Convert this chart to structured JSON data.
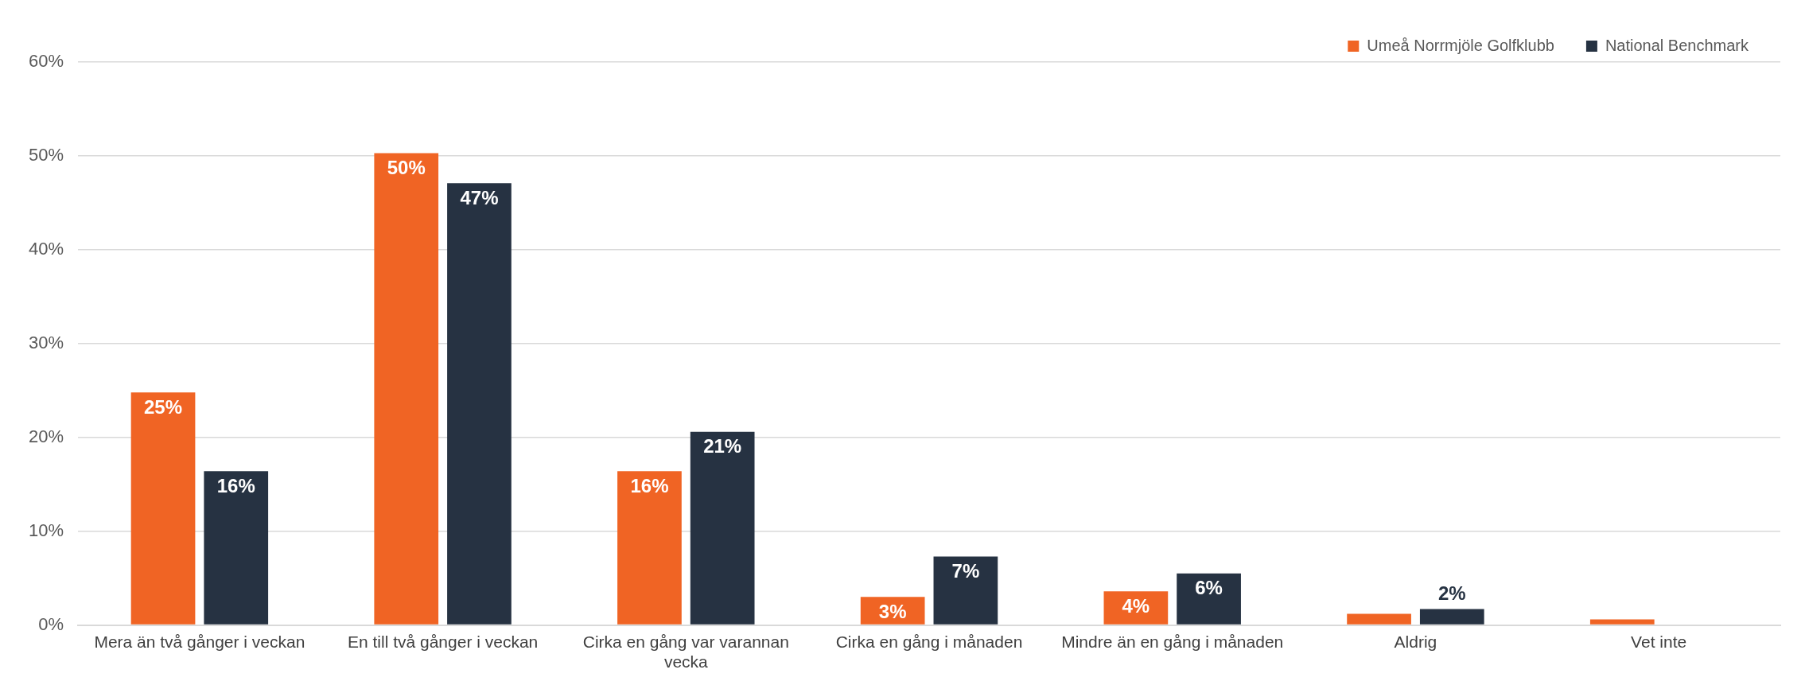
{
  "chart_data": {
    "type": "bar",
    "categories": [
      "Mera än två gånger i veckan",
      "En till två gånger i veckan",
      "Cirka en gång var varannan vecka",
      "Cirka en gång i månaden",
      "Mindre än en gång i månaden",
      "Aldrig",
      "Vet inte"
    ],
    "series": [
      {
        "name": "Umeå Norrmjöle Golfklubb",
        "color": "#f06424",
        "values": [
          24.8,
          50.3,
          16.4,
          3.0,
          3.6,
          1.2,
          0.6
        ],
        "value_labels": [
          "25%",
          "50%",
          "16%",
          "3%",
          "4%",
          null,
          null
        ]
      },
      {
        "name": "National Benchmark",
        "color": "#263242",
        "values": [
          16.4,
          47.1,
          20.6,
          7.3,
          5.5,
          1.7,
          null
        ],
        "value_labels": [
          "16%",
          "47%",
          "21%",
          "7%",
          "6%",
          "2%",
          null
        ]
      }
    ],
    "ylim": [
      0,
      60
    ],
    "yticks": [
      {
        "value": 0,
        "label": "0%"
      },
      {
        "value": 10,
        "label": "10%"
      },
      {
        "value": 20,
        "label": "20%"
      },
      {
        "value": 30,
        "label": "30%"
      },
      {
        "value": 40,
        "label": "40%"
      },
      {
        "value": 50,
        "label": "50%"
      },
      {
        "value": 60,
        "label": "60%"
      }
    ],
    "grid": "y",
    "legend": "top right"
  }
}
